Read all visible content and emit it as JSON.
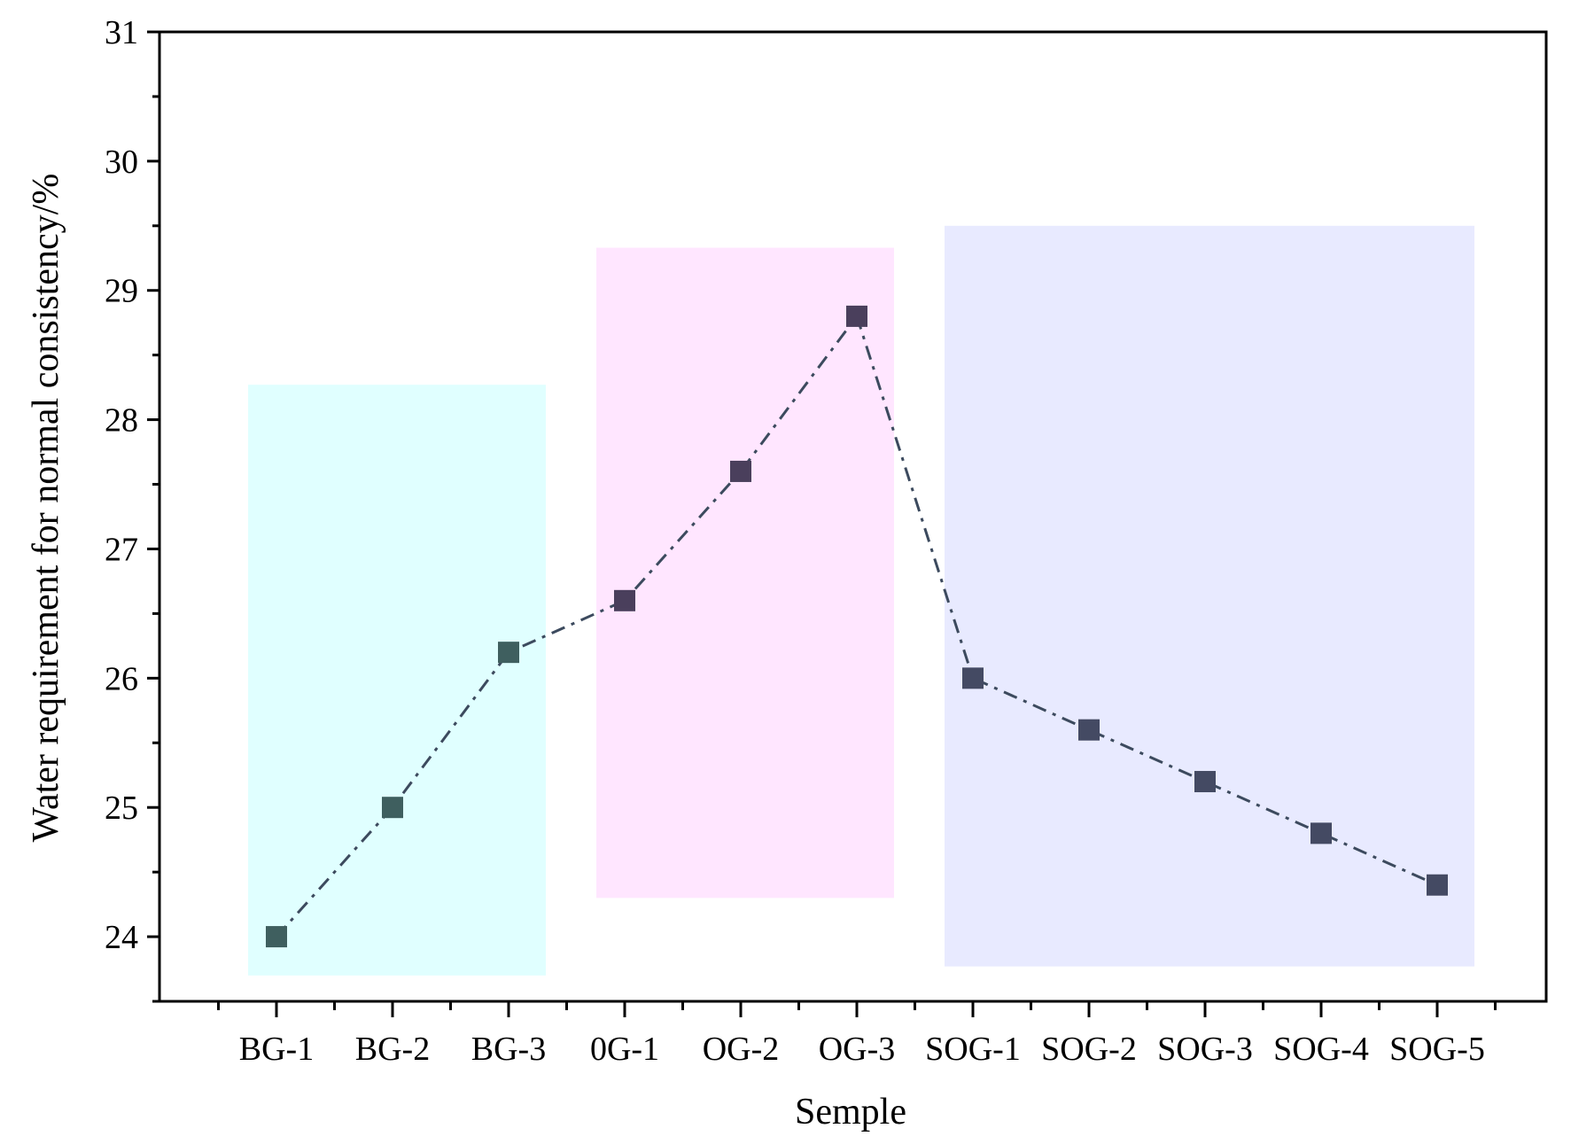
{
  "chart_data": {
    "type": "line",
    "title": "",
    "xlabel": "Semple",
    "ylabel": "Water requirement for normal consistency/%",
    "categories": [
      "BG-1",
      "BG-2",
      "BG-3",
      "0G-1",
      "OG-2",
      "OG-3",
      "SOG-1",
      "SOG-2",
      "SOG-3",
      "SOG-4",
      "SOG-5"
    ],
    "series": [
      {
        "values": [
          24.0,
          25.0,
          26.2,
          26.6,
          27.6,
          28.8,
          26.0,
          25.6,
          25.2,
          24.8,
          24.4
        ],
        "color": "#3c4a5e",
        "line_style": "dash-dot",
        "marker": "square"
      }
    ],
    "ylim": [
      23.5,
      31
    ],
    "yticks": [
      24,
      25,
      26,
      27,
      28,
      29,
      30,
      31
    ],
    "grid": false,
    "legend": "none",
    "marker_colors": [
      "#3f5f5f",
      "#3f5f5f",
      "#3f5f5f",
      "#4a3f5c",
      "#4a3f5c",
      "#4a3f5c",
      "#444a63",
      "#444a63",
      "#444a63",
      "#444a63",
      "#444a63"
    ],
    "highlight_bands": [
      {
        "from_index": 0,
        "to_index": 2,
        "y_range": [
          23.7,
          28.27
        ],
        "color": "#e0ffff"
      },
      {
        "from_index": 3,
        "to_index": 5,
        "y_range": [
          24.3,
          29.33
        ],
        "color": "#ffe6ff"
      },
      {
        "from_index": 6,
        "to_index": 10,
        "y_range": [
          23.77,
          29.5
        ],
        "color": "#e8eaff"
      }
    ]
  }
}
